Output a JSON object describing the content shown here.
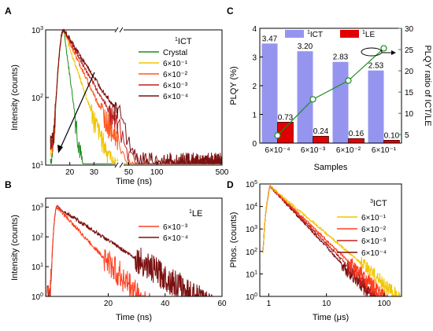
{
  "chart_data": [
    {
      "panel": "A",
      "type": "line",
      "annotation": "ICT",
      "annotation_sup": "1",
      "xlabel": "Time (ns)",
      "ylabel": "Intensity (counts)",
      "yscale": "log",
      "ylim": [
        10,
        1000
      ],
      "xaxis_break": true,
      "xticks": [
        "20",
        "30",
        "50",
        "100",
        "500"
      ],
      "yticks": [
        {
          "base": "10",
          "exp": "1"
        },
        {
          "base": "10",
          "exp": "2"
        },
        {
          "base": "10",
          "exp": "3"
        }
      ],
      "legend_position": "top-right",
      "series": [
        {
          "name": "Crystal",
          "color": "#1e8c1e",
          "tau_ns": 1.6
        },
        {
          "name": "6×10⁻¹",
          "color": "#f2c500",
          "tau_ns": 4.0
        },
        {
          "name": "6×10⁻²",
          "color": "#ff5a1e",
          "tau_ns": 5.5
        },
        {
          "name": "6×10⁻³",
          "color": "#c0201e",
          "tau_ns": 6.5
        },
        {
          "name": "6×10⁻⁴",
          "color": "#7a1010",
          "tau_ns": 7.5
        }
      ],
      "peak_time_ns": 17.5,
      "peak_counts": 1000
    },
    {
      "panel": "B",
      "type": "line",
      "annotation": "LE",
      "annotation_sup": "1",
      "xlabel": "Time (ns)",
      "ylabel": "Intensity (counts)",
      "yscale": "log",
      "xlim": [
        -2,
        60
      ],
      "ylim": [
        1,
        2000
      ],
      "xticks": [
        20,
        40,
        60
      ],
      "yticks": [
        {
          "base": "10",
          "exp": "0"
        },
        {
          "base": "10",
          "exp": "1"
        },
        {
          "base": "10",
          "exp": "2"
        },
        {
          "base": "10",
          "exp": "3"
        }
      ],
      "legend_position": "right",
      "series": [
        {
          "name": "6×10⁻³",
          "color": "#ff4020",
          "tau_ns": 4.2
        },
        {
          "name": "6×10⁻⁴",
          "color": "#7a1010",
          "tau_ns": 7.0
        }
      ],
      "peak_time_ns": 2,
      "peak_counts": 1000
    },
    {
      "panel": "C",
      "type": "bar",
      "xlabel": "Samples",
      "ylabel": "PLQY (%)",
      "ylabel_right": "PLQY ratio of ICT/LE",
      "categories": [
        "6×10⁻⁴",
        "6×10⁻³",
        "6×10⁻²",
        "6×10⁻¹"
      ],
      "ylim": [
        0,
        4
      ],
      "ylim_right": [
        3,
        30
      ],
      "yticks": [
        "0",
        "1",
        "2",
        "3",
        "4"
      ],
      "yticks_right": [
        "5",
        "10",
        "15",
        "20",
        "25",
        "30"
      ],
      "legend_position": "top",
      "series": [
        {
          "name": "ICT",
          "name_sup": "1",
          "color": "#9595f0",
          "values": [
            3.47,
            3.2,
            2.83,
            2.53
          ],
          "labels": [
            "3.47",
            "3.20",
            "2.83",
            "2.53"
          ]
        },
        {
          "name": "LE",
          "name_sup": "1",
          "color": "#e00000",
          "values": [
            0.73,
            0.24,
            0.16,
            0.1
          ],
          "labels": [
            "0.73",
            "0.24",
            "0.16",
            "0.10"
          ]
        }
      ],
      "ratio_series": {
        "color": "#1e8c1e",
        "values": [
          4.8,
          13.3,
          17.7,
          25.3
        ]
      }
    },
    {
      "panel": "D",
      "type": "line",
      "annotation": "ICT",
      "annotation_sup": "3",
      "xlabel": "Time (μs)",
      "ylabel": "Phos. (counts)",
      "xscale": "log",
      "yscale": "log",
      "xlim": [
        0.7,
        200
      ],
      "ylim": [
        1,
        100000
      ],
      "xticks": [
        "1",
        "10",
        "100"
      ],
      "yticks": [
        {
          "base": "10",
          "exp": "0"
        },
        {
          "base": "10",
          "exp": "1"
        },
        {
          "base": "10",
          "exp": "2"
        },
        {
          "base": "10",
          "exp": "3"
        },
        {
          "base": "10",
          "exp": "4"
        },
        {
          "base": "10",
          "exp": "5"
        }
      ],
      "legend_position": "right",
      "series": [
        {
          "name": "6×10⁻¹",
          "color": "#f2c500",
          "slope": 2.15
        },
        {
          "name": "6×10⁻²",
          "color": "#ff4020",
          "slope": 2.45
        },
        {
          "name": "6×10⁻³",
          "color": "#c0201e",
          "slope": 2.6
        },
        {
          "name": "6×10⁻⁴",
          "color": "#7a1010",
          "slope": 2.75
        }
      ],
      "peak_time_us": 1.05,
      "peak_counts": 80000
    }
  ]
}
